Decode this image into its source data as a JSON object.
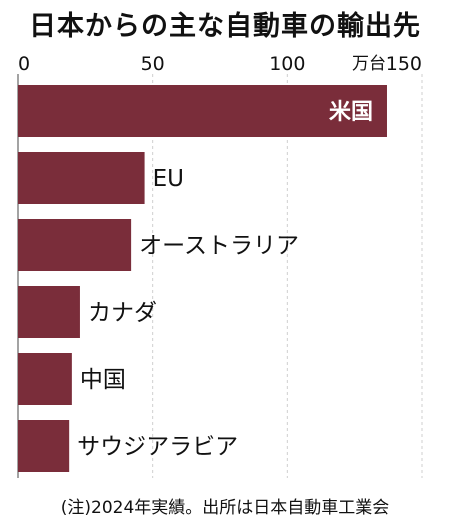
{
  "chart_data": {
    "type": "bar",
    "orientation": "horizontal",
    "title": "日本からの主な自動車の輸出先",
    "unit": "万台",
    "xlim": [
      0,
      150
    ],
    "xticks": [
      0,
      50,
      100,
      150
    ],
    "grid": true,
    "categories": [
      "米国",
      "EU",
      "オーストラリア",
      "カナダ",
      "中国",
      "サウジアラビア"
    ],
    "values": [
      137,
      47,
      42,
      23,
      20,
      19
    ],
    "bar_color": "#7a2d3a",
    "note": "(注)2024年実績。出所は日本自動車工業会"
  }
}
